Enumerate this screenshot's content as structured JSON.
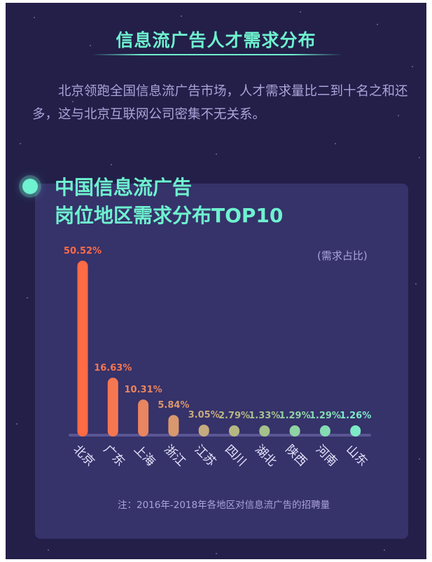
{
  "header": {
    "title": "信息流广告人才需求分布",
    "intro": "北京领跑全国信息流广告市场，人才需求量比二到十名之和还多，这与北京互联网公司密集不无关系。"
  },
  "panel": {
    "title_line1": "中国信息流广告",
    "title_line2": "岗位地区需求分布TOP10",
    "unit_label": "(需求占比)",
    "note": "注：2016年-2018年各地区对信息流广告的招聘量"
  },
  "colors": {
    "background": "#231f49",
    "panel": "#36326a",
    "accent": "#6ef2cf",
    "bar_top": "#ff6b45",
    "bar_bottom": "#7ee9c6"
  },
  "chart_data": {
    "type": "bar",
    "categories": [
      "北京",
      "广东",
      "上海",
      "浙江",
      "江苏",
      "四川",
      "湖北",
      "陕西",
      "河南",
      "山东"
    ],
    "values": [
      50.52,
      16.63,
      10.31,
      5.84,
      3.05,
      2.79,
      1.33,
      1.29,
      1.29,
      1.26
    ],
    "value_labels": [
      "50.52%",
      "16.63%",
      "10.31%",
      "5.84%",
      "3.05%",
      "2.79%",
      "1.33%",
      "1.29%",
      "1.29%",
      "1.26%"
    ],
    "bar_colors": [
      "#ff6b45",
      "#f47752",
      "#e9855f",
      "#d9986d",
      "#c5ab7d",
      "#b5b882",
      "#a4c28c",
      "#8fd2a4",
      "#84dcb4",
      "#7ee9c6"
    ],
    "ylabel": "(需求占比)",
    "ylim": [
      0,
      50.52
    ],
    "grid": false
  }
}
